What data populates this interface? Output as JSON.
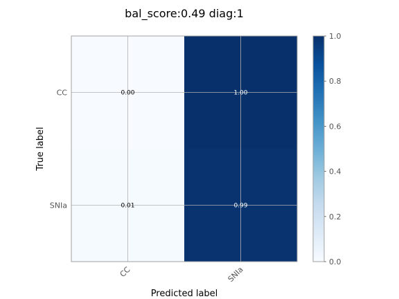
{
  "chart_data": {
    "type": "heatmap",
    "title": "bal_score:0.49 diag:1",
    "xlabel": "Predicted label",
    "ylabel": "True label",
    "x_categories": [
      "CC",
      "SNIa"
    ],
    "y_categories": [
      "CC",
      "SNIa"
    ],
    "values": [
      [
        0.0,
        1.0
      ],
      [
        0.01,
        0.99
      ]
    ],
    "cell_labels": [
      [
        "0.00",
        "1.00"
      ],
      [
        "0.01",
        "0.99"
      ]
    ],
    "colorbar": {
      "min": 0.0,
      "max": 1.0,
      "ticks": [
        "0.0",
        "0.2",
        "0.4",
        "0.6",
        "0.8",
        "1.0"
      ],
      "colormap": "Blues",
      "low_color": "#f7fbff",
      "high_color": "#08306b"
    },
    "grid": true,
    "grid_color": "#b0b0b0",
    "text_color_light": "#ffffff",
    "text_color_dark": "#000000"
  }
}
